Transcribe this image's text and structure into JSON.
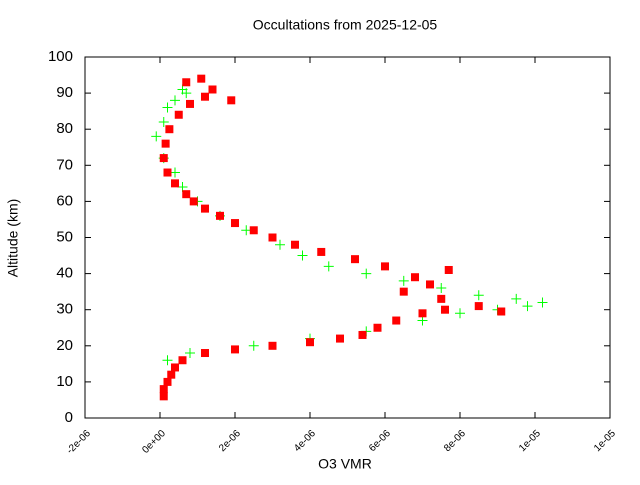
{
  "chart_data": {
    "type": "scatter",
    "title": "Occultations from 2025-12-05",
    "x_label": "O3 VMR",
    "y_label": "Altitude (km)",
    "xlim": [
      -2e-06,
      1.2e-05
    ],
    "ylim": [
      0,
      100
    ],
    "xticks": [
      {
        "value": -2e-06,
        "label": "-2e-06"
      },
      {
        "value": 0,
        "label": "0e+00"
      },
      {
        "value": 2e-06,
        "label": "2e-06"
      },
      {
        "value": 4e-06,
        "label": "4e-06"
      },
      {
        "value": 6e-06,
        "label": "6e-06"
      },
      {
        "value": 8e-06,
        "label": "8e-06"
      },
      {
        "value": 1e-05,
        "label": "1e-05"
      },
      {
        "value": 1.2e-05,
        "label": "1e-05"
      }
    ],
    "yticks": [
      0,
      10,
      20,
      30,
      40,
      50,
      60,
      70,
      80,
      90,
      100
    ],
    "series": [
      {
        "name": "green",
        "color": "#00ff00",
        "marker": "plus",
        "x": [
          2e-07,
          8e-07,
          2.5e-06,
          4e-06,
          5.5e-06,
          7e-06,
          8e-06,
          9e-06,
          9.8e-06,
          1.02e-05,
          9.5e-06,
          8.5e-06,
          7.5e-06,
          6.5e-06,
          5.5e-06,
          4.5e-06,
          3.8e-06,
          3.2e-06,
          2.3e-06,
          1.6e-06,
          1e-06,
          6e-07,
          4e-07,
          1e-07,
          -1e-07,
          1e-07,
          2e-07,
          4e-07,
          7e-07,
          6e-07
        ],
        "values": [
          16,
          18,
          20,
          22,
          24,
          27,
          29,
          30,
          31,
          32,
          33,
          34,
          36,
          38,
          40,
          42,
          45,
          48,
          52,
          56,
          60,
          64,
          68,
          72,
          78,
          82,
          86,
          88,
          90,
          91
        ]
      },
      {
        "name": "red",
        "color": "#ff0000",
        "marker": "square",
        "x": [
          1e-07,
          1e-07,
          2e-07,
          3e-07,
          4e-07,
          6e-07,
          1.2e-06,
          2e-06,
          3e-06,
          4e-06,
          4.8e-06,
          5.4e-06,
          5.8e-06,
          6.3e-06,
          7e-06,
          7.6e-06,
          8.5e-06,
          9.1e-06,
          7.5e-06,
          6.5e-06,
          7.2e-06,
          6.8e-06,
          7.7e-06,
          6e-06,
          5.2e-06,
          4.3e-06,
          3.6e-06,
          3e-06,
          2.5e-06,
          2e-06,
          1.6e-06,
          1.2e-06,
          9e-07,
          7e-07,
          4e-07,
          2e-07,
          1e-07,
          1.5e-07,
          2.5e-07,
          5e-07,
          8e-07,
          1.2e-06,
          1.9e-06,
          1.4e-06,
          7e-07,
          1.1e-06
        ],
        "values": [
          6,
          8,
          10,
          12,
          14,
          16,
          18,
          19,
          20,
          21,
          22,
          23,
          25,
          27,
          29,
          30,
          31,
          29.5,
          33,
          35,
          37,
          39,
          41,
          42,
          44,
          46,
          48,
          50,
          52,
          54,
          56,
          58,
          60,
          62,
          65,
          68,
          72,
          76,
          80,
          84,
          87,
          89,
          88,
          91,
          93,
          94
        ]
      }
    ]
  }
}
